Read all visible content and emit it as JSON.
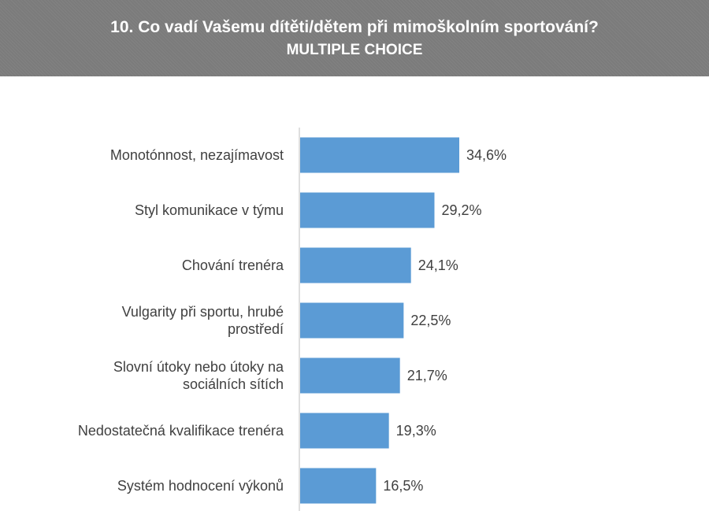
{
  "title": "10. Co vadí Vašemu dítěti/dětem při mimoškolním sportování?",
  "subtitle": "MULTIPLE CHOICE",
  "colors": {
    "header_bg": "#7b7b7b",
    "bar": "#5b9bd5",
    "text": "#404040",
    "axis": "#bfbfbf"
  },
  "chart_data": {
    "type": "bar",
    "orientation": "horizontal",
    "title": "10. Co vadí Vašemu dítěti/dětem při mimoškolním sportování?",
    "subtitle": "MULTIPLE CHOICE",
    "categories": [
      [
        "Monotónnost, nezajímavost"
      ],
      [
        "Styl komunikace v týmu"
      ],
      [
        "Chování trenéra"
      ],
      [
        "Vulgarity při sportu, hrubé",
        "prostředí"
      ],
      [
        "Slovní útoky nebo útoky na",
        "sociálních sítích"
      ],
      [
        "Nedostatečná kvalifikace trenéra"
      ],
      [
        "Systém hodnocení výkonů"
      ]
    ],
    "values": [
      34.6,
      29.2,
      24.1,
      22.5,
      21.7,
      19.3,
      16.5
    ],
    "value_labels": [
      "34,6%",
      "29,2%",
      "24,1%",
      "22,5%",
      "21,7%",
      "19,3%",
      "16,5%"
    ],
    "unit": "%",
    "grid": false,
    "legend": "none"
  }
}
